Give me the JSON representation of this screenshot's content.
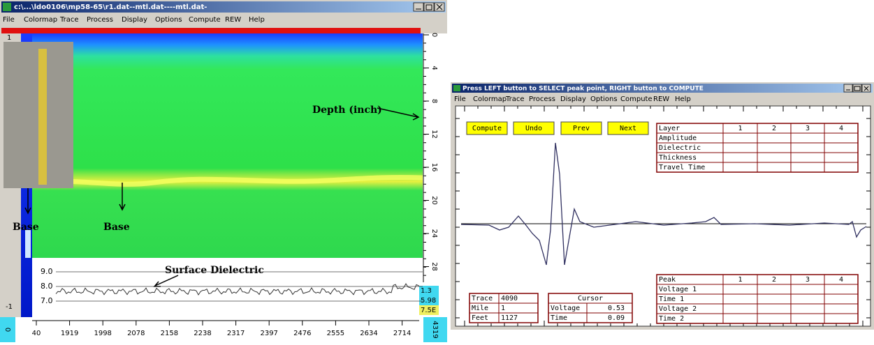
{
  "left_window": {
    "title": "c:\\...\\ldo0106\\mp58-65\\r1.dat--mtl.dat----mtl.dat-",
    "menu": [
      "File",
      "Colormap",
      "Trace",
      "Process",
      "Display",
      "Options",
      "Compute",
      "REW",
      "Help"
    ],
    "depth_label": "Depth (inch)",
    "depth_ticks": [
      "0",
      "4",
      "8",
      "12",
      "16",
      "20",
      "24",
      "28"
    ],
    "annotations": [
      "Base",
      "Base",
      "Surface Dielectric"
    ],
    "dielectric_ticks": [
      "9.0",
      "8.0",
      "7.0"
    ],
    "readouts": [
      "1.3",
      "5.98",
      "7.5E"
    ],
    "corner_labels": [
      "1",
      "-1",
      "0",
      "4319"
    ],
    "x_ticks": [
      "40",
      "1919",
      "1998",
      "2078",
      "2158",
      "2238",
      "2317",
      "2397",
      "2476",
      "2555",
      "2634",
      "2714"
    ]
  },
  "right_window": {
    "title": "Press LEFT button to SELECT peak point, RIGHT button to COMPUTE",
    "menu": [
      "File",
      "Colormap",
      "Trace",
      "Process",
      "Display",
      "Options",
      "Compute",
      "REW",
      "Help"
    ],
    "buttons": [
      "Compute",
      "Undo",
      "Prev",
      "Next"
    ],
    "layer_table": {
      "header": [
        "Layer",
        "1",
        "2",
        "3",
        "4"
      ],
      "rows": [
        "Amplitude",
        "Dielectric",
        "Thickness",
        "Travel Time"
      ]
    },
    "peak_table": {
      "header": [
        "Peak",
        "1",
        "2",
        "3",
        "4"
      ],
      "rows": [
        "Voltage 1",
        "Time 1",
        "Voltage 2",
        "Time 2"
      ]
    },
    "trace_info": [
      [
        "Trace",
        "4090"
      ],
      [
        "Mile",
        "1"
      ],
      [
        "Feet",
        "1127"
      ]
    ],
    "cursor": {
      "title": "Cursor",
      "rows": [
        [
          "Voltage",
          "0.53"
        ],
        [
          "Time",
          "0.09"
        ]
      ]
    }
  }
}
